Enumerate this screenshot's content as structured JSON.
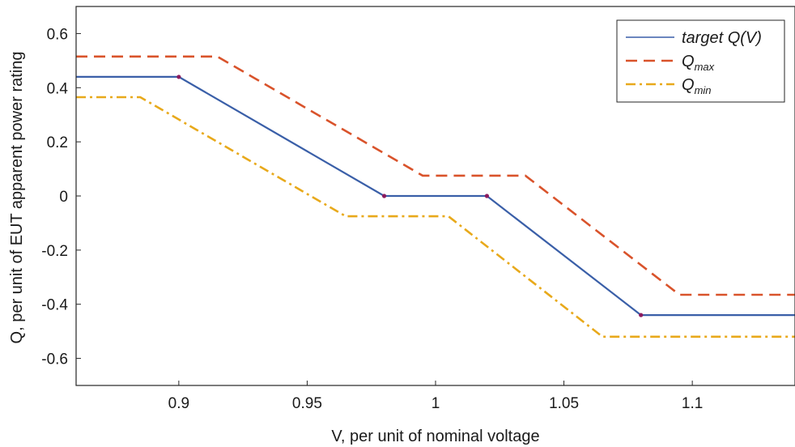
{
  "chart_data": {
    "type": "line",
    "xlabel": "V, per unit of nominal voltage",
    "ylabel": "Q, per unit of EUT apparent power rating",
    "xlim": [
      0.86,
      1.14
    ],
    "ylim": [
      -0.7,
      0.7
    ],
    "x_ticks": [
      {
        "value": 0.9,
        "label": "0.9"
      },
      {
        "value": 0.95,
        "label": "0.95"
      },
      {
        "value": 1.0,
        "label": "1"
      },
      {
        "value": 1.05,
        "label": "1.05"
      },
      {
        "value": 1.1,
        "label": "1.1"
      }
    ],
    "y_ticks": [
      {
        "value": 0.6,
        "label": "0.6"
      },
      {
        "value": 0.4,
        "label": "0.4"
      },
      {
        "value": 0.2,
        "label": "0.2"
      },
      {
        "value": 0.0,
        "label": "0"
      },
      {
        "value": -0.2,
        "label": "-0.2"
      },
      {
        "value": -0.4,
        "label": "-0.4"
      },
      {
        "value": -0.6,
        "label": "-0.6"
      }
    ],
    "grid": false,
    "legend_position": "top-right",
    "series": [
      {
        "name": "target Q(V)",
        "name_main": "target Q(V)",
        "name_sub": "",
        "color": "#3a5fa8",
        "style": "solid",
        "x": [
          0.86,
          0.9,
          0.98,
          1.02,
          1.08,
          1.14
        ],
        "y": [
          0.44,
          0.44,
          0.0,
          0.0,
          -0.44,
          -0.44
        ]
      },
      {
        "name": "Qmax",
        "name_main": "Q",
        "name_sub": "max",
        "color": "#d9532b",
        "style": "dashed",
        "x": [
          0.86,
          0.915,
          0.995,
          1.035,
          1.095,
          1.14
        ],
        "y": [
          0.515,
          0.515,
          0.075,
          0.075,
          -0.365,
          -0.365
        ]
      },
      {
        "name": "Qmin",
        "name_main": "Q",
        "name_sub": "min",
        "color": "#e8a91b",
        "style": "dashdot",
        "x": [
          0.86,
          0.885,
          0.965,
          1.005,
          1.065,
          1.14
        ],
        "y": [
          0.365,
          0.365,
          -0.075,
          -0.075,
          -0.52,
          -0.52
        ]
      }
    ],
    "markers": {
      "color": "#8b1a5e",
      "points": [
        {
          "x": 0.9,
          "y": 0.44
        },
        {
          "x": 0.98,
          "y": 0.0
        },
        {
          "x": 1.02,
          "y": 0.0
        },
        {
          "x": 1.08,
          "y": -0.44
        }
      ]
    }
  }
}
